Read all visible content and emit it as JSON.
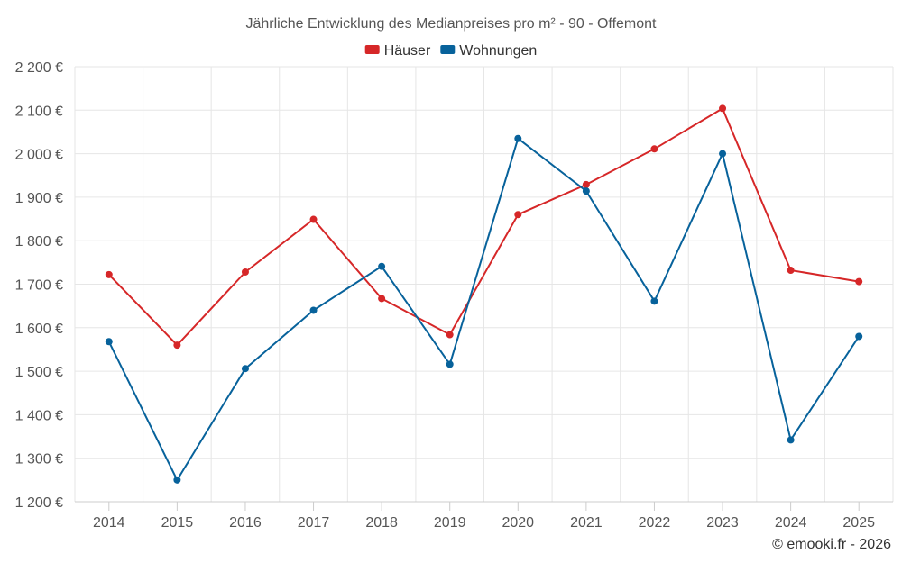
{
  "chart_data": {
    "type": "line",
    "title": "Jährliche Entwicklung des Medianpreises pro m² - 90 - Offemont",
    "categories": [
      "2014",
      "2015",
      "2016",
      "2017",
      "2018",
      "2019",
      "2020",
      "2021",
      "2022",
      "2023",
      "2024",
      "2025"
    ],
    "series": [
      {
        "name": "Häuser",
        "color": "#d62728",
        "values": [
          1722,
          1560,
          1728,
          1849,
          1667,
          1584,
          1860,
          1929,
          2011,
          2104,
          1732,
          1706
        ]
      },
      {
        "name": "Wohnungen",
        "color": "#07629b",
        "values": [
          1568,
          1250,
          1506,
          1640,
          1741,
          1516,
          2035,
          1914,
          1661,
          2000,
          1342,
          1580
        ]
      }
    ],
    "ylim": [
      1200,
      2200
    ],
    "yticks": [
      1200,
      1300,
      1400,
      1500,
      1600,
      1700,
      1800,
      1900,
      2000,
      2100,
      2200
    ],
    "ytick_labels": [
      "1 200 €",
      "1 300 €",
      "1 400 €",
      "1 500 €",
      "1 600 €",
      "1 700 €",
      "1 800 €",
      "1 900 €",
      "2 000 €",
      "2 100 €",
      "2 200 €"
    ],
    "xlabel": "",
    "ylabel": "",
    "grid": true,
    "legend_position": "top-center"
  },
  "credit": "© emooki.fr - 2026"
}
